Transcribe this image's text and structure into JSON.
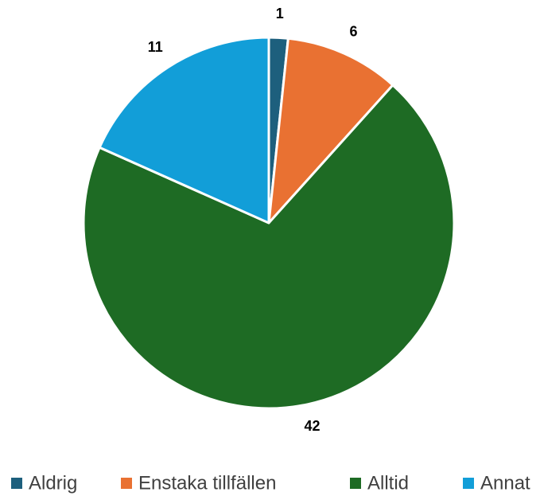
{
  "chart_data": {
    "type": "pie",
    "categories": [
      "Aldrig",
      "Enstaka tillfällen",
      "Alltid",
      "Annat"
    ],
    "values": [
      1,
      6,
      42,
      11
    ],
    "colors": [
      "#1d5f7d",
      "#e97132",
      "#1e6b24",
      "#129ed8"
    ],
    "legend": "bottom"
  }
}
